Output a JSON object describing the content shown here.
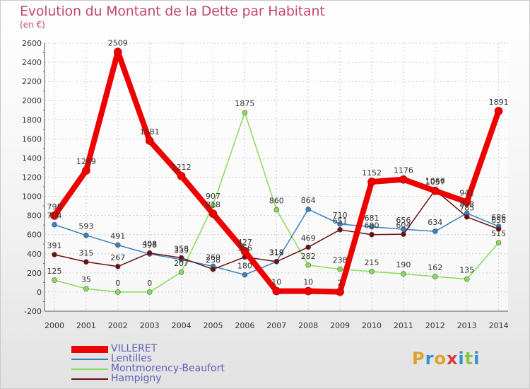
{
  "title": "Evolution du Montant de la Dette par Habitant",
  "unit_label": "(en €)",
  "logo_text": "Proxiti",
  "colors": {
    "title": "#c2476e",
    "legend_text": "#6060b8",
    "axis_text": "#333333",
    "logo_letters": [
      "#e2a02a",
      "#2f8fd8",
      "#e2a02a",
      "#d83a3a",
      "#2f8fd8",
      "#8ac43a",
      "#2f8fd8"
    ]
  },
  "chart_data": {
    "type": "line",
    "title": "Evolution du Montant de la Dette par Habitant",
    "ylabel": "(en €)",
    "xlabel": "",
    "x": [
      "2000",
      "2001",
      "2002",
      "2003",
      "2004",
      "2005",
      "2006",
      "2007",
      "2008",
      "2009",
      "2010",
      "2011",
      "2012",
      "2013",
      "2014"
    ],
    "ylim": [
      -200,
      2600
    ],
    "yticks": [
      -200,
      0,
      200,
      400,
      600,
      800,
      1000,
      1200,
      1400,
      1600,
      1800,
      2000,
      2200,
      2400,
      2600
    ],
    "grid": true,
    "legend_position": "bottom-left",
    "series": [
      {
        "name": "VILLERET",
        "color": "#ee0000",
        "width": "thick",
        "values": [
          798,
          1269,
          2509,
          1581,
          1212,
          818,
          427,
          10,
          10,
          2,
          1152,
          1176,
          1057,
          941,
          1891
        ],
        "labels": [
          "798",
          "1269",
          "2509",
          "1581",
          "1212",
          "818",
          "427",
          "10",
          "10",
          "2",
          "1152",
          "1176",
          "1057",
          "941",
          "1891"
        ]
      },
      {
        "name": "Lentilles",
        "color": "#3a7fbf",
        "width": "thin",
        "values": [
          704,
          593,
          491,
          398,
          339,
          269,
          180,
          319,
          864,
          710,
          681,
          656,
          634,
          823,
          686
        ],
        "labels": [
          "704",
          "593",
          "491",
          "398",
          "339",
          "269",
          "180",
          "319",
          "864",
          "710",
          "681",
          "656",
          "634",
          "823",
          "686"
        ]
      },
      {
        "name": "Montmorency-Beaufort",
        "color": "#88dd55",
        "width": "thin",
        "values": [
          125,
          35,
          0,
          0,
          207,
          907,
          1875,
          860,
          282,
          238,
          215,
          190,
          162,
          135,
          515
        ],
        "labels": [
          "125",
          "35",
          "0",
          "0",
          "207",
          "907",
          "1875",
          "860",
          "282",
          "238",
          "215",
          "190",
          "162",
          "135",
          "515"
        ]
      },
      {
        "name": "Hampigny",
        "color": "#6b1010",
        "width": "thin",
        "values": [
          391,
          315,
          267,
          408,
          358,
          238,
          366,
          318,
          469,
          651,
          600,
          604,
          1066,
          785,
          658
        ],
        "labels": [
          "391",
          "315",
          "267",
          "408",
          "358",
          "238",
          "366",
          "318",
          "469",
          "651",
          "600",
          "604",
          "1066",
          "785",
          "658"
        ]
      }
    ]
  }
}
